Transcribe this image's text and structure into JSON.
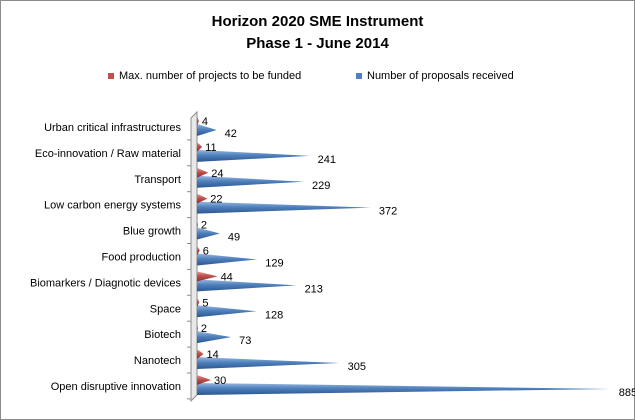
{
  "chart_data": {
    "type": "bar",
    "title": "Horizon 2020 SME Instrument",
    "subtitle": "Phase 1 - June 2014",
    "categories": [
      "Urban critical infrastructures",
      "Eco-innovation / Raw material",
      "Transport",
      "Low carbon energy systems",
      "Blue growth",
      "Food production",
      "Biomarkers / Diagnotic devices",
      "Space",
      "Biotech",
      "Nanotech",
      "Open disruptive innovation"
    ],
    "series": [
      {
        "name": "Max. number of projects to be funded",
        "color": "#c0504d",
        "values": [
          4,
          11,
          24,
          22,
          2,
          6,
          44,
          5,
          2,
          14,
          30
        ]
      },
      {
        "name": "Number of proposals received",
        "color": "#4f81bd",
        "values": [
          42,
          241,
          229,
          372,
          49,
          129,
          213,
          128,
          73,
          305,
          885
        ]
      }
    ],
    "orientation": "horizontal",
    "shape": "cone",
    "legend": "top",
    "grid": false
  }
}
